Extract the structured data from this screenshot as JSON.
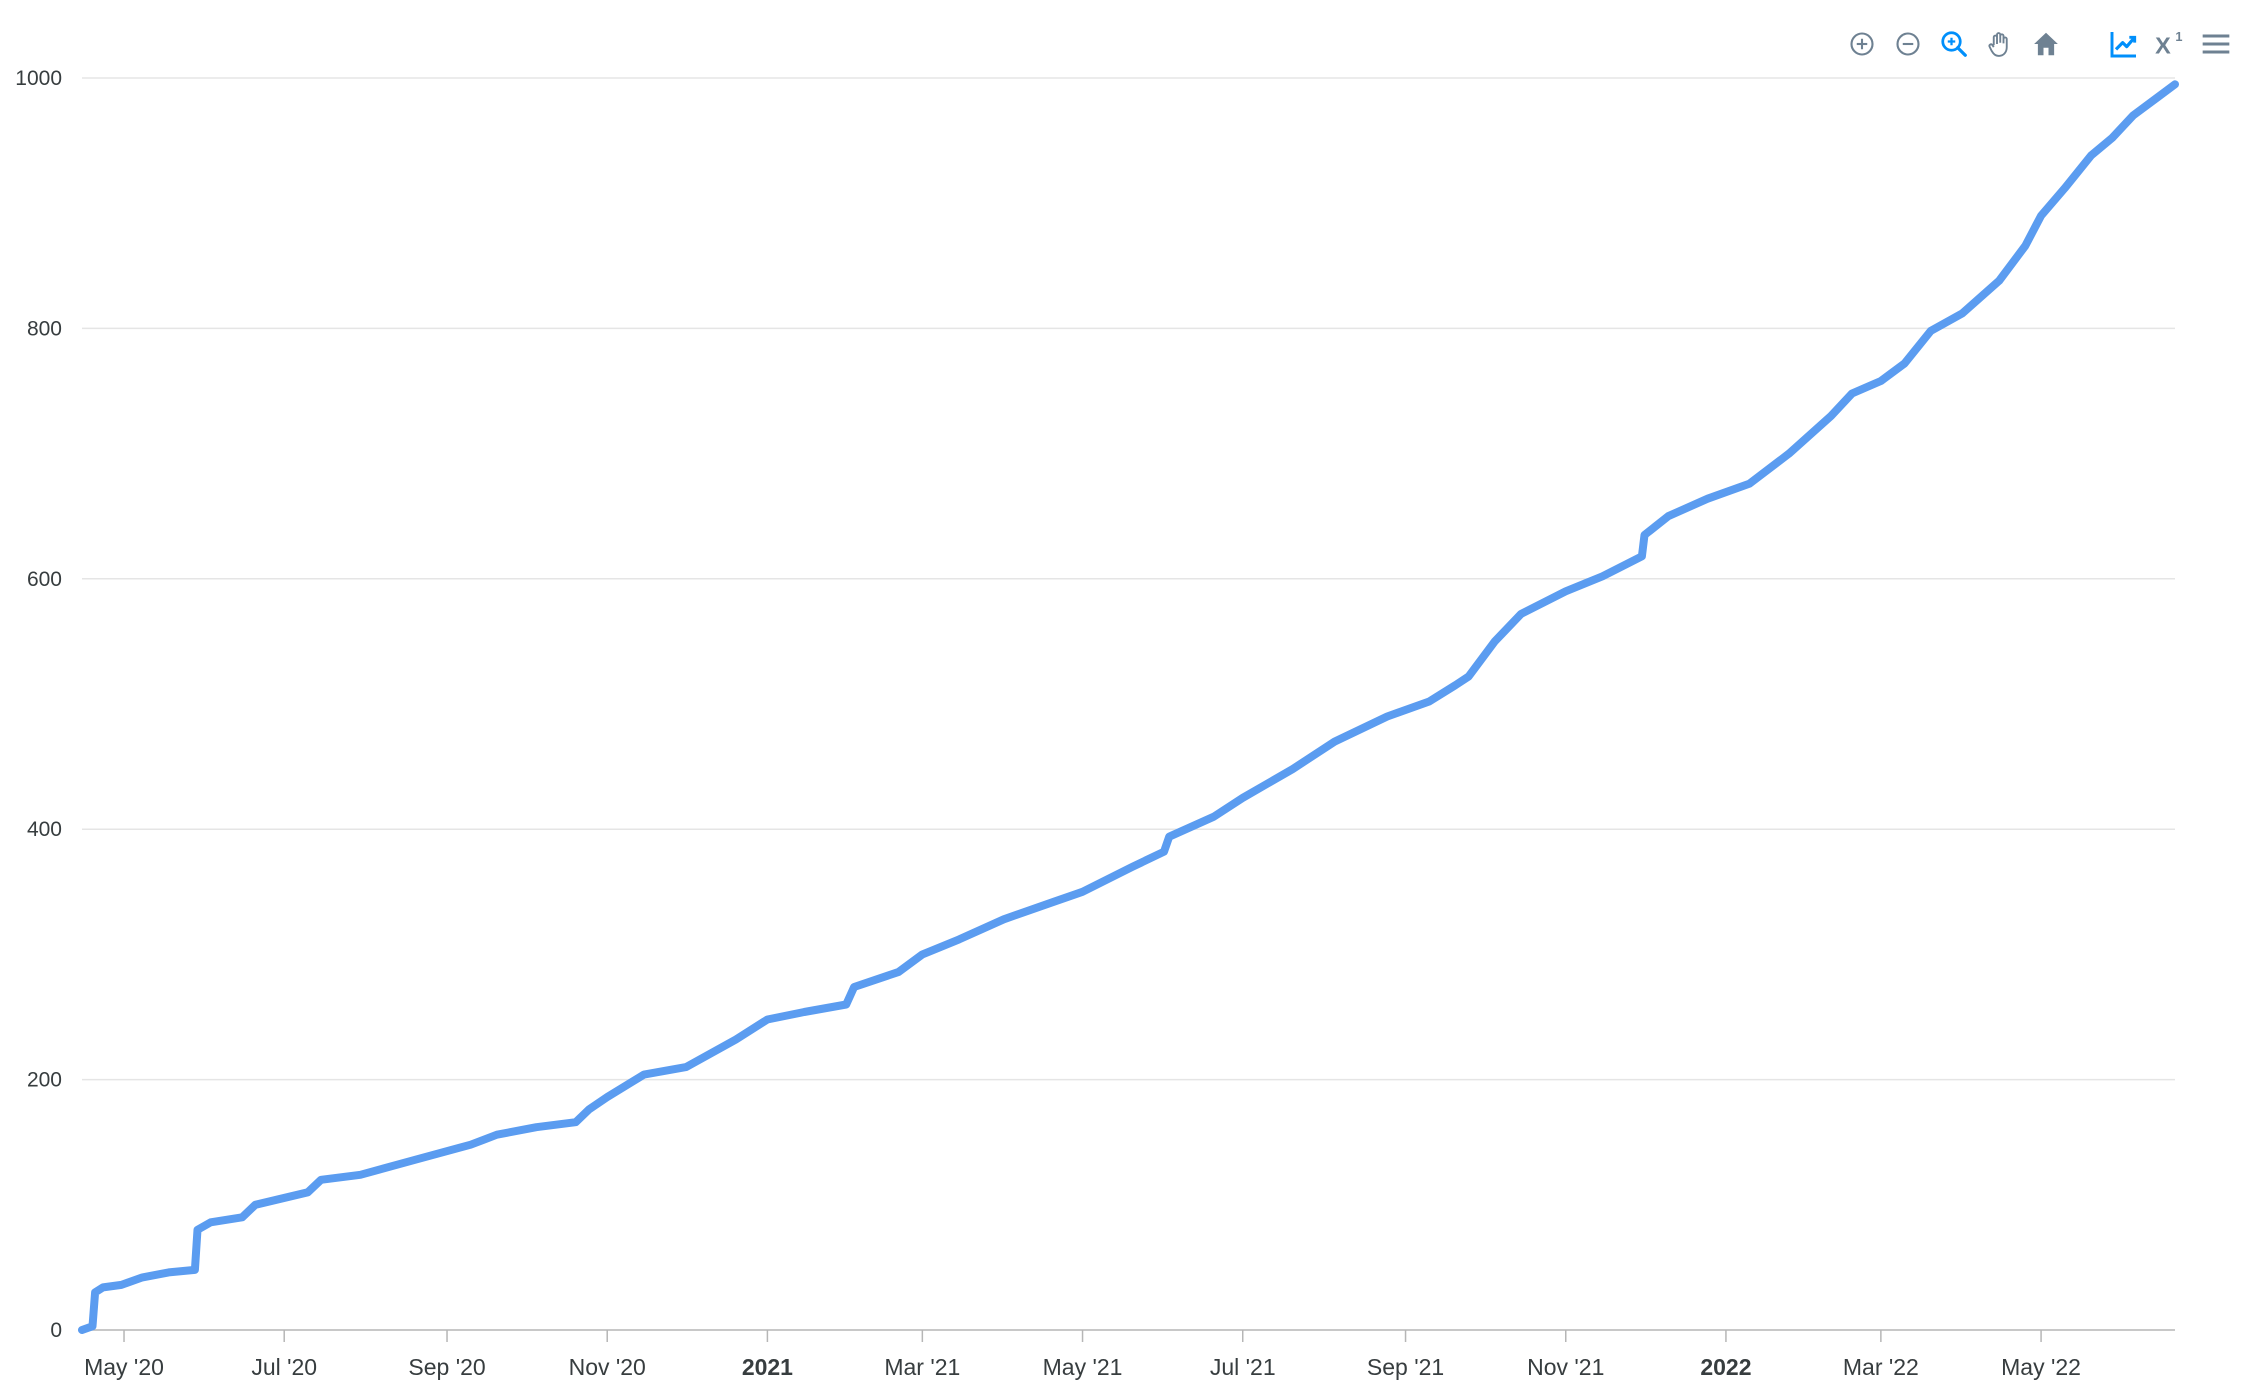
{
  "toolbar": {
    "icons": [
      "zoom-in-icon",
      "zoom-out-icon",
      "selection-zoom-icon",
      "pan-icon",
      "reset-home-icon",
      "chart-type-icon",
      "log-scale-icon",
      "menu-icon"
    ],
    "active_icon": "selection-zoom-icon",
    "log_scale_label": "X",
    "log_scale_sup": "1"
  },
  "colors": {
    "series": "#5b9cf0",
    "grid": "#e5e5e5",
    "axis": "#b6b6b6",
    "tick_text": "#373d3f",
    "toolbar_icon": "#6e8192",
    "toolbar_active": "#008ffb"
  },
  "chart_data": {
    "type": "line",
    "title": "",
    "xlabel": "",
    "ylabel": "",
    "ylim": [
      0,
      1000
    ],
    "xlim": [
      "2020-04-15",
      "2022-06-21"
    ],
    "grid": true,
    "legend": "none",
    "y_ticks": [
      "0",
      "200",
      "400",
      "600",
      "800",
      "1000"
    ],
    "x_ticks": [
      {
        "label": "May '20",
        "date": "2020-05-01",
        "bold": false
      },
      {
        "label": "Jul '20",
        "date": "2020-07-01",
        "bold": false
      },
      {
        "label": "Sep '20",
        "date": "2020-09-01",
        "bold": false
      },
      {
        "label": "Nov '20",
        "date": "2020-11-01",
        "bold": false
      },
      {
        "label": "2021",
        "date": "2021-01-01",
        "bold": true
      },
      {
        "label": "Mar '21",
        "date": "2021-03-01",
        "bold": false
      },
      {
        "label": "May '21",
        "date": "2021-05-01",
        "bold": false
      },
      {
        "label": "Jul '21",
        "date": "2021-07-01",
        "bold": false
      },
      {
        "label": "Sep '21",
        "date": "2021-09-01",
        "bold": false
      },
      {
        "label": "Nov '21",
        "date": "2021-11-01",
        "bold": false
      },
      {
        "label": "2022",
        "date": "2022-01-01",
        "bold": true
      },
      {
        "label": "Mar '22",
        "date": "2022-03-01",
        "bold": false
      },
      {
        "label": "May '22",
        "date": "2022-05-01",
        "bold": false
      }
    ],
    "series": [
      {
        "points": [
          [
            "2020-04-15",
            0
          ],
          [
            "2020-04-19",
            3
          ],
          [
            "2020-04-20",
            30
          ],
          [
            "2020-04-23",
            34
          ],
          [
            "2020-04-30",
            36
          ],
          [
            "2020-05-08",
            42
          ],
          [
            "2020-05-18",
            46
          ],
          [
            "2020-05-28",
            48
          ],
          [
            "2020-05-29",
            80
          ],
          [
            "2020-06-03",
            86
          ],
          [
            "2020-06-15",
            90
          ],
          [
            "2020-06-20",
            100
          ],
          [
            "2020-07-10",
            110
          ],
          [
            "2020-07-15",
            120
          ],
          [
            "2020-07-30",
            124
          ],
          [
            "2020-08-20",
            136
          ],
          [
            "2020-09-10",
            148
          ],
          [
            "2020-09-20",
            156
          ],
          [
            "2020-10-05",
            162
          ],
          [
            "2020-10-20",
            166
          ],
          [
            "2020-10-25",
            176
          ],
          [
            "2020-11-01",
            186
          ],
          [
            "2020-11-15",
            204
          ],
          [
            "2020-12-01",
            210
          ],
          [
            "2020-12-20",
            232
          ],
          [
            "2021-01-01",
            248
          ],
          [
            "2021-01-15",
            254
          ],
          [
            "2021-01-31",
            260
          ],
          [
            "2021-02-03",
            274
          ],
          [
            "2021-02-20",
            286
          ],
          [
            "2021-03-01",
            300
          ],
          [
            "2021-03-15",
            312
          ],
          [
            "2021-04-01",
            328
          ],
          [
            "2021-04-20",
            342
          ],
          [
            "2021-05-01",
            350
          ],
          [
            "2021-05-20",
            370
          ],
          [
            "2021-06-01",
            382
          ],
          [
            "2021-06-03",
            394
          ],
          [
            "2021-06-20",
            410
          ],
          [
            "2021-07-01",
            425
          ],
          [
            "2021-07-20",
            448
          ],
          [
            "2021-08-05",
            470
          ],
          [
            "2021-08-25",
            490
          ],
          [
            "2021-09-10",
            502
          ],
          [
            "2021-09-20",
            515
          ],
          [
            "2021-09-25",
            522
          ],
          [
            "2021-10-05",
            550
          ],
          [
            "2021-10-15",
            572
          ],
          [
            "2021-11-01",
            590
          ],
          [
            "2021-11-15",
            602
          ],
          [
            "2021-11-30",
            618
          ],
          [
            "2021-12-01",
            635
          ],
          [
            "2021-12-10",
            650
          ],
          [
            "2021-12-25",
            664
          ],
          [
            "2022-01-10",
            676
          ],
          [
            "2022-01-25",
            700
          ],
          [
            "2022-02-10",
            730
          ],
          [
            "2022-02-18",
            748
          ],
          [
            "2022-03-01",
            758
          ],
          [
            "2022-03-10",
            772
          ],
          [
            "2022-03-20",
            798
          ],
          [
            "2022-04-01",
            812
          ],
          [
            "2022-04-15",
            838
          ],
          [
            "2022-04-25",
            866
          ],
          [
            "2022-05-01",
            890
          ],
          [
            "2022-05-10",
            912
          ],
          [
            "2022-05-20",
            938
          ],
          [
            "2022-05-28",
            952
          ],
          [
            "2022-06-05",
            970
          ],
          [
            "2022-06-21",
            995
          ]
        ]
      }
    ]
  }
}
